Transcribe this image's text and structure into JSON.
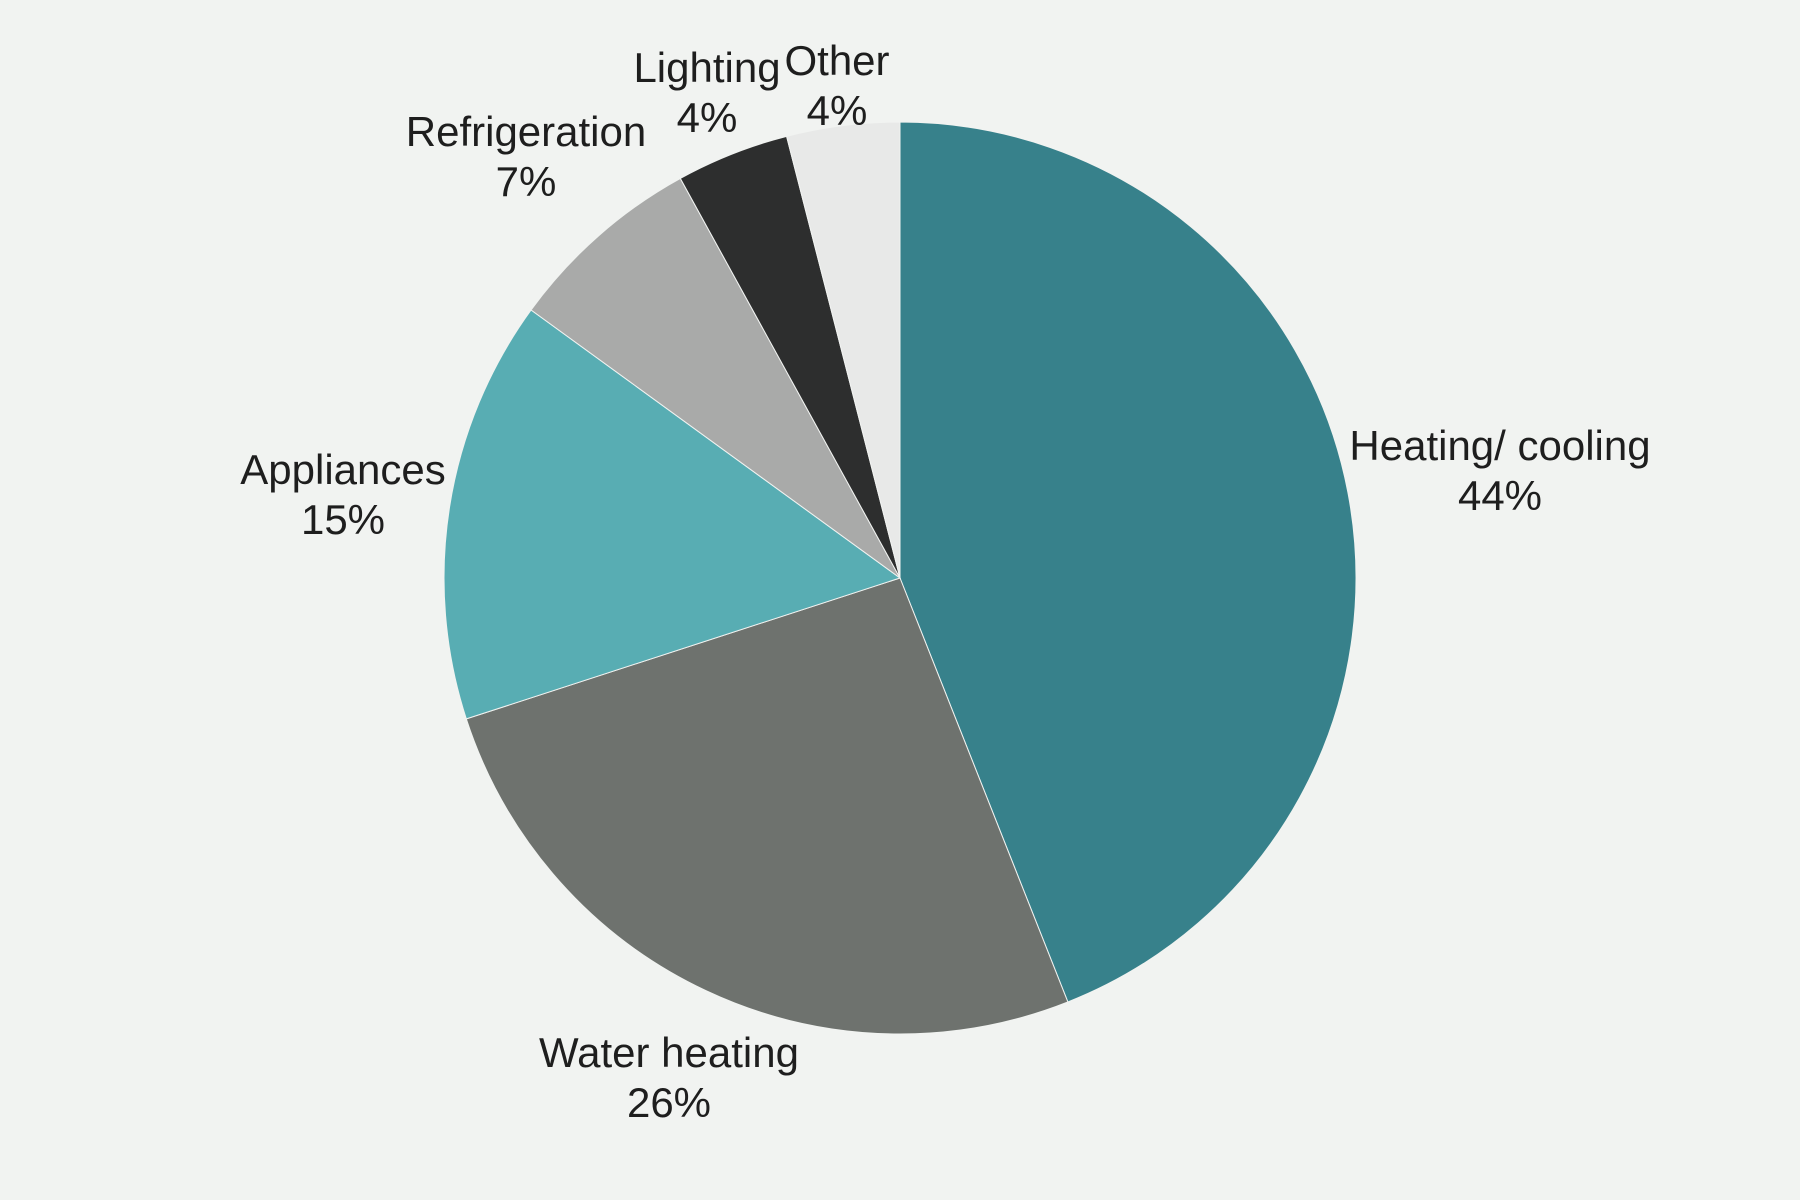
{
  "colors": {
    "background": "#f1f3f1",
    "text": "#1e1e1e",
    "slice_divider": "#f1f3f1"
  },
  "chart_data": {
    "type": "pie",
    "title": "",
    "start_angle_deg": 0,
    "direction": "clockwise",
    "legend": "none",
    "label_style": "outside, category name above percent value",
    "slices": [
      {
        "label": "Heating/ cooling",
        "value": 44,
        "pct_label": "44%",
        "color": "#37818b"
      },
      {
        "label": "Water heating",
        "value": 26,
        "pct_label": "26%",
        "color": "#6e726e"
      },
      {
        "label": "Appliances",
        "value": 15,
        "pct_label": "15%",
        "color": "#58adb3"
      },
      {
        "label": "Refrigeration",
        "value": 7,
        "pct_label": "7%",
        "color": "#a9aaa9"
      },
      {
        "label": "Lighting",
        "value": 4,
        "pct_label": "4%",
        "color": "#2d2e2e"
      },
      {
        "label": "Other",
        "value": 4,
        "pct_label": "4%",
        "color": "#e8e9e8"
      }
    ]
  }
}
